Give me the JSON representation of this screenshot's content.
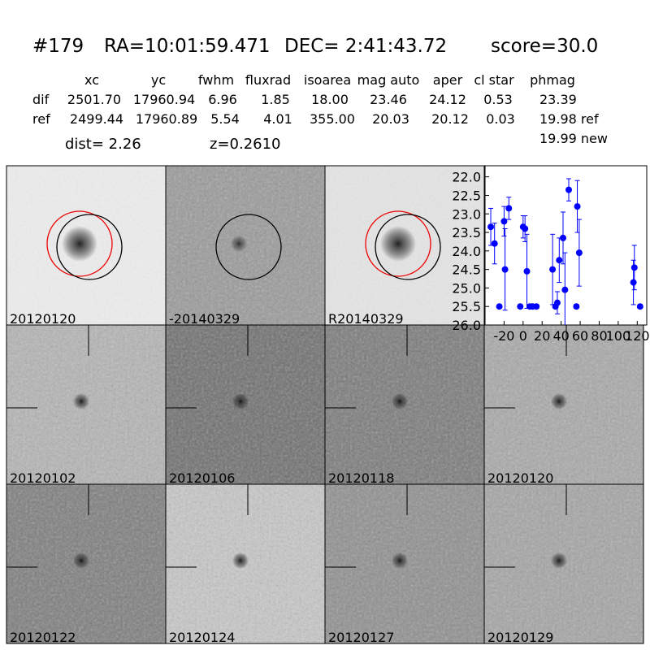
{
  "header": {
    "id": "#179",
    "ra": "RA=10:01:59.471",
    "dec": "DEC= 2:41:43.72",
    "score": "score=30.0"
  },
  "table": {
    "columns": [
      "xc",
      "yc",
      "fwhm",
      "fluxrad",
      "isoarea",
      "mag auto",
      "aper",
      "cl star",
      "phmag"
    ],
    "rows": [
      {
        "label": "dif",
        "cells": [
          "2501.70",
          "17960.94",
          "6.96",
          "1.85",
          "18.00",
          "23.46",
          "24.12",
          "0.53",
          "23.39"
        ]
      },
      {
        "label": "ref",
        "cells": [
          "2499.44",
          "17960.89",
          "5.54",
          "4.01",
          "355.00",
          "20.03",
          "20.12",
          "0.03",
          "19.98 ref"
        ]
      }
    ],
    "extra": "19.99 new"
  },
  "info": {
    "dist": "dist=  2.26",
    "z": "z=0.2610"
  },
  "panels": [
    {
      "label": "20120120"
    },
    {
      "label": "-20140329"
    },
    {
      "label": "R20140329"
    },
    {
      "label": "20120102"
    },
    {
      "label": "20120106"
    },
    {
      "label": "20120118"
    },
    {
      "label": "20120120",
      "label_color": "#ff0000"
    },
    {
      "label": "20120122"
    },
    {
      "label": "20120124"
    },
    {
      "label": "20120127"
    },
    {
      "label": "20120129"
    }
  ],
  "chart_data": {
    "type": "errorbar",
    "color": "#0000ff",
    "x": [
      -34,
      -30,
      -25,
      -20,
      -19,
      -15,
      -3,
      0,
      2,
      4,
      7,
      10,
      14,
      31,
      34,
      36,
      38,
      42,
      44,
      48,
      56,
      57,
      59,
      116,
      117,
      123
    ],
    "values": [
      23.35,
      23.8,
      25.5,
      23.2,
      24.5,
      22.85,
      25.5,
      23.35,
      23.4,
      24.55,
      25.5,
      25.5,
      25.5,
      24.5,
      25.5,
      25.4,
      24.25,
      23.65,
      25.05,
      22.35,
      25.5,
      22.8,
      24.05,
      24.85,
      24.45,
      25.5
    ],
    "errors": [
      0.5,
      0.55,
      0.05,
      0.4,
      1.1,
      0.3,
      0.05,
      0.3,
      0.35,
      1.0,
      0.05,
      0.05,
      0.05,
      0.95,
      0.05,
      0.3,
      0.6,
      0.7,
      1.0,
      0.3,
      0.05,
      0.7,
      0.9,
      0.6,
      0.6,
      0.05
    ],
    "xlim": [
      -40,
      130
    ],
    "ylim": [
      26.0,
      21.7
    ],
    "xticks": [
      -20,
      0,
      20,
      40,
      60,
      80,
      100,
      120
    ],
    "yticks": [
      {
        "value": 22,
        "label": "22.0"
      },
      {
        "value": 22.5,
        "label": "22.5"
      },
      {
        "value": 23,
        "label": "23.0"
      },
      {
        "value": 23.5,
        "label": "23.5"
      },
      {
        "value": 24,
        "label": "24.0"
      },
      {
        "value": 24.5,
        "label": "24.5"
      },
      {
        "value": 25,
        "label": "25.0"
      },
      {
        "value": 25.5,
        "label": "25.5"
      },
      {
        "value": 26,
        "label": "26.0"
      }
    ]
  }
}
